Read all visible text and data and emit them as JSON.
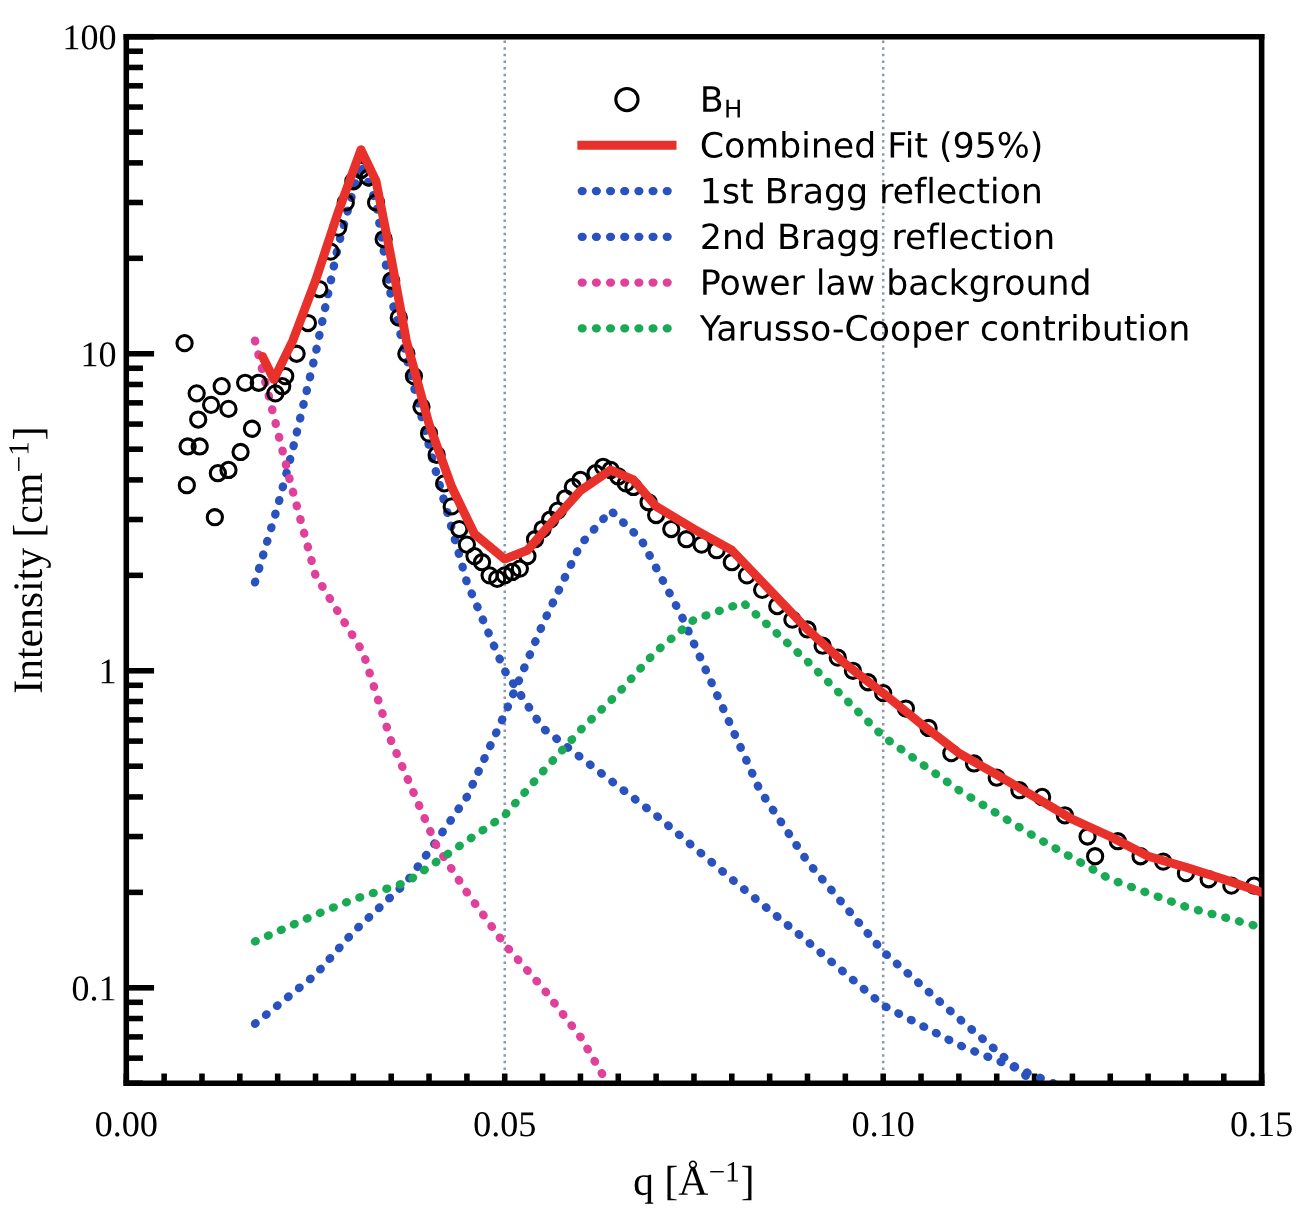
{
  "chart_data": {
    "type": "line",
    "xlabel": "q [Å$^{−1}$]",
    "ylabel": "Intensity [cm$^{−1}$]",
    "log": "y",
    "xlim": [
      0,
      0.15
    ],
    "ylim": [
      0.05,
      100
    ],
    "xticks": [
      {
        "value": 0,
        "label": "0.00"
      },
      {
        "value": 0.005,
        "label": null
      },
      {
        "value": 0.01,
        "label": null
      },
      {
        "value": 0.015,
        "label": null
      },
      {
        "value": 0.02,
        "label": null
      },
      {
        "value": 0.025,
        "label": null
      },
      {
        "value": 0.03,
        "label": null
      },
      {
        "value": 0.035,
        "label": null
      },
      {
        "value": 0.04,
        "label": null
      },
      {
        "value": 0.045,
        "label": null
      },
      {
        "value": 0.05,
        "label": "0.05"
      },
      {
        "value": 0.055,
        "label": null
      },
      {
        "value": 0.06,
        "label": null
      },
      {
        "value": 0.065,
        "label": null
      },
      {
        "value": 0.07,
        "label": null
      },
      {
        "value": 0.075,
        "label": null
      },
      {
        "value": 0.08,
        "label": null
      },
      {
        "value": 0.085,
        "label": null
      },
      {
        "value": 0.09,
        "label": null
      },
      {
        "value": 0.095,
        "label": null
      },
      {
        "value": 0.1,
        "label": "0.10"
      },
      {
        "value": 0.105,
        "label": null
      },
      {
        "value": 0.11,
        "label": null
      },
      {
        "value": 0.115,
        "label": null
      },
      {
        "value": 0.12,
        "label": null
      },
      {
        "value": 0.125,
        "label": null
      },
      {
        "value": 0.13,
        "label": null
      },
      {
        "value": 0.135,
        "label": null
      },
      {
        "value": 0.14,
        "label": null
      },
      {
        "value": 0.145,
        "label": null
      },
      {
        "value": 0.15,
        "label": "0.15"
      }
    ],
    "yticks": [
      0.1,
      1,
      10,
      100
    ],
    "legend": "top right",
    "ref_lines": [
      {
        "axis": "x",
        "value": 0.05,
        "color": "#8a9aa8",
        "line_style": "dotted"
      },
      {
        "axis": "x",
        "value": 0.1,
        "color": "#8a9aa8",
        "line_style": "dotted"
      }
    ],
    "series": [
      {
        "name": "B$_{H}$",
        "type": "scatter",
        "marker": "circle",
        "color": "#000000",
        "x": [
          0.0077,
          0.008,
          0.0081,
          0.0093,
          0.0095,
          0.0097,
          0.0112,
          0.0117,
          0.0121,
          0.0126,
          0.0135,
          0.0135,
          0.0151,
          0.0157,
          0.0166,
          0.0175,
          0.0197,
          0.0206,
          0.021,
          0.0225,
          0.024,
          0.0255,
          0.027,
          0.028,
          0.029,
          0.03,
          0.031,
          0.032,
          0.033,
          0.034,
          0.035,
          0.036,
          0.037,
          0.038,
          0.039,
          0.04,
          0.041,
          0.042,
          0.043,
          0.044,
          0.045,
          0.046,
          0.047,
          0.048,
          0.049,
          0.05,
          0.051,
          0.052,
          0.053,
          0.054,
          0.055,
          0.056,
          0.057,
          0.058,
          0.059,
          0.06,
          0.062,
          0.063,
          0.064,
          0.065,
          0.066,
          0.067,
          0.069,
          0.07,
          0.072,
          0.074,
          0.076,
          0.078,
          0.08,
          0.082,
          0.084,
          0.086,
          0.088,
          0.09,
          0.092,
          0.094,
          0.096,
          0.098,
          0.1,
          0.103,
          0.106,
          0.109,
          0.112,
          0.115,
          0.118,
          0.121,
          0.124,
          0.127,
          0.128,
          0.131,
          0.134,
          0.137,
          0.14,
          0.143,
          0.146,
          0.149
        ],
        "values": [
          10.8,
          3.85,
          5.1,
          7.5,
          6.2,
          5.1,
          6.9,
          3.05,
          4.2,
          7.9,
          4.3,
          6.7,
          4.9,
          8.1,
          5.8,
          8.1,
          7.5,
          7.9,
          8.5,
          10,
          12.5,
          16,
          21,
          25,
          30,
          35,
          38,
          36,
          30,
          23,
          17,
          13,
          10,
          8.5,
          6.8,
          5.6,
          4.8,
          3.9,
          3.3,
          2.8,
          2.5,
          2.3,
          2.2,
          2.0,
          1.95,
          2.0,
          2.05,
          2.1,
          2.3,
          2.6,
          2.8,
          3.0,
          3.2,
          3.5,
          3.8,
          4.0,
          4.2,
          4.4,
          4.3,
          4.1,
          3.9,
          3.8,
          3.4,
          3.1,
          2.8,
          2.6,
          2.5,
          2.4,
          2.2,
          2.0,
          1.8,
          1.6,
          1.45,
          1.35,
          1.2,
          1.1,
          1.0,
          0.92,
          0.85,
          0.76,
          0.66,
          0.55,
          0.51,
          0.46,
          0.42,
          0.4,
          0.35,
          0.3,
          0.26,
          0.29,
          0.26,
          0.25,
          0.23,
          0.22,
          0.21,
          0.21
        ]
      },
      {
        "name": "Combined Fit (95%)",
        "line_style": "solid",
        "color": "#e8312a",
        "x": [
          0.018,
          0.0195,
          0.022,
          0.025,
          0.028,
          0.031,
          0.033,
          0.035,
          0.037,
          0.04,
          0.043,
          0.046,
          0.05,
          0.053,
          0.056,
          0.06,
          0.064,
          0.067,
          0.07,
          0.075,
          0.08,
          0.085,
          0.09,
          0.095,
          0.1,
          0.105,
          0.11,
          0.115,
          0.12,
          0.125,
          0.13,
          0.135,
          0.14,
          0.145,
          0.15
        ],
        "values": [
          9.8,
          8.3,
          11,
          17,
          28,
          44,
          35,
          20,
          11,
          6,
          3.8,
          2.7,
          2.25,
          2.4,
          2.9,
          3.7,
          4.3,
          4.0,
          3.3,
          2.8,
          2.4,
          1.8,
          1.35,
          1.05,
          0.85,
          0.68,
          0.55,
          0.47,
          0.4,
          0.34,
          0.3,
          0.26,
          0.24,
          0.22,
          0.2
        ]
      },
      {
        "name": "1st Bragg reflection",
        "line_style": "dotted",
        "color": "#2a52be",
        "x": [
          0.017,
          0.02,
          0.022,
          0.025,
          0.028,
          0.031,
          0.033,
          0.035,
          0.0405,
          0.045,
          0.05,
          0.055,
          0.063,
          0.07,
          0.08,
          0.09,
          0.1,
          0.11,
          0.1225
        ],
        "values": [
          1.9,
          3.3,
          5,
          10,
          22,
          40,
          30,
          15,
          4.6,
          1.9,
          1.0,
          0.66,
          0.47,
          0.35,
          0.22,
          0.14,
          0.088,
          0.066,
          0.05
        ]
      },
      {
        "name": "2nd Bragg reflection",
        "line_style": "dotted",
        "color": "#2a52be",
        "x": [
          0.017,
          0.025,
          0.03,
          0.037,
          0.0405,
          0.045,
          0.05,
          0.055,
          0.06,
          0.064,
          0.068,
          0.0733,
          0.0837,
          0.09,
          0.1,
          0.11,
          0.12
        ],
        "values": [
          0.077,
          0.11,
          0.15,
          0.215,
          0.28,
          0.4,
          0.73,
          1.4,
          2.5,
          3.2,
          2.6,
          1.5,
          0.42,
          0.25,
          0.13,
          0.08,
          0.05
        ]
      },
      {
        "name": "Power law background",
        "line_style": "dotted",
        "color": "#e0409a",
        "x": [
          0.017,
          0.0216,
          0.025,
          0.0313,
          0.035,
          0.041,
          0.045,
          0.05,
          0.055,
          0.06,
          0.0636
        ],
        "values": [
          11,
          4.0,
          2.0,
          1.14,
          0.6,
          0.28,
          0.2,
          0.137,
          0.1,
          0.07,
          0.05
        ]
      },
      {
        "name": "Yarusso-Cooper contribution",
        "line_style": "dotted",
        "color": "#1aaa55",
        "x": [
          0.017,
          0.025,
          0.03,
          0.037,
          0.044,
          0.05,
          0.055,
          0.06,
          0.065,
          0.0698,
          0.075,
          0.0815,
          0.09,
          0.1,
          0.11,
          0.12,
          0.13,
          0.14,
          0.15
        ],
        "values": [
          0.14,
          0.17,
          0.19,
          0.215,
          0.28,
          0.35,
          0.48,
          0.65,
          0.85,
          1.14,
          1.45,
          1.64,
          1.07,
          0.62,
          0.42,
          0.3,
          0.22,
          0.18,
          0.155
        ]
      }
    ]
  }
}
